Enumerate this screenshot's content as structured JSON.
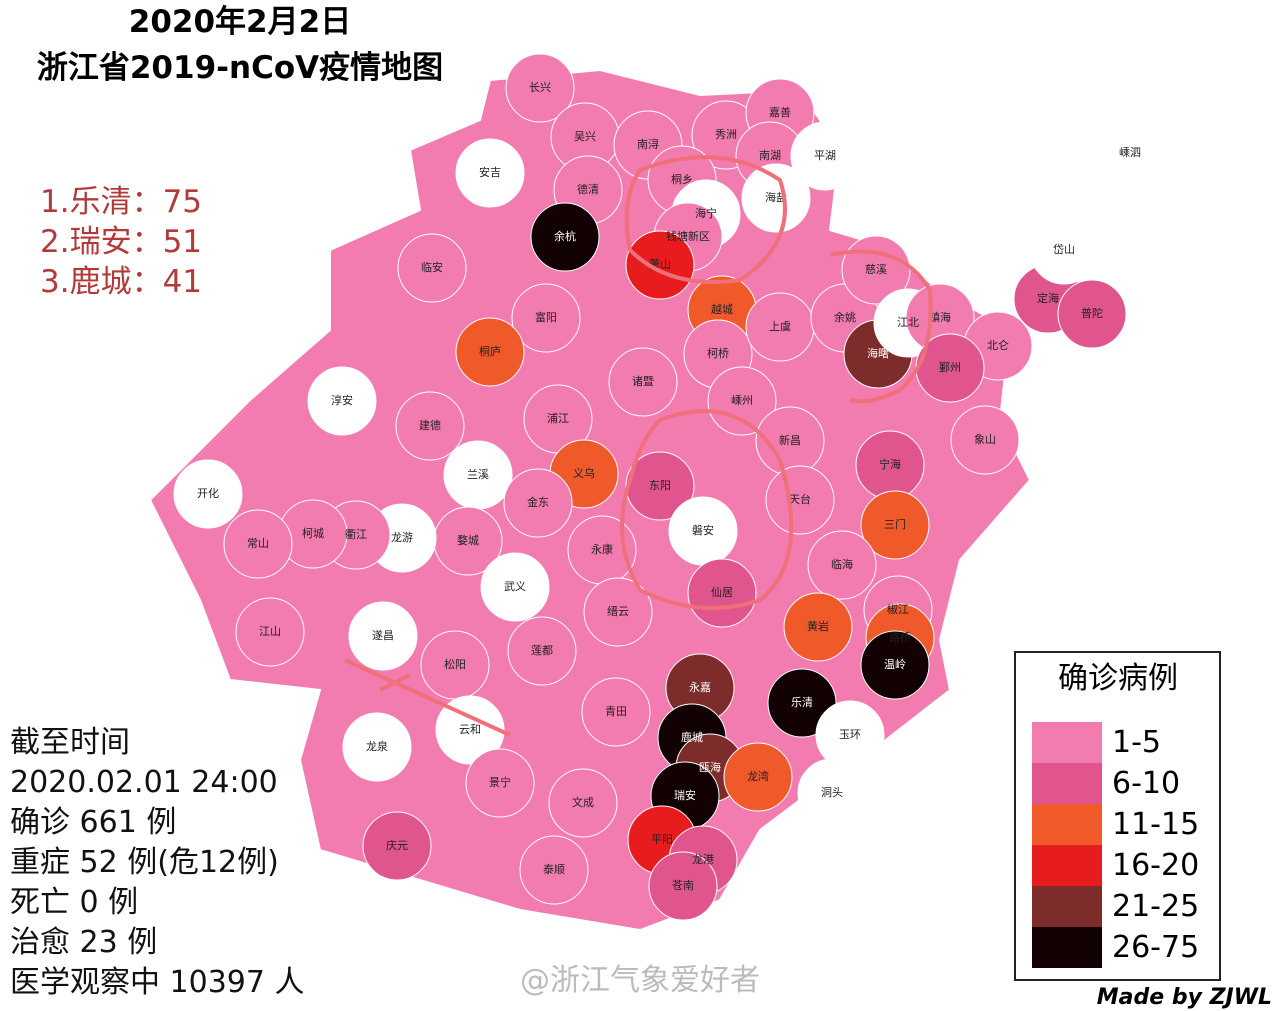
{
  "header": {
    "title_date": "2020年2月2日",
    "title_main": "浙江省2019-nCoV疫情地图"
  },
  "ranking": [
    "1.乐清：75",
    "2.瑞安：51",
    "3.鹿城：41"
  ],
  "stats": [
    "截至时间",
    "2020.02.01 24:00",
    "确诊 661 例",
    "重症 52 例(危12例)",
    "死亡 0 例",
    "治愈 23 例",
    "医学观察中 10397 人"
  ],
  "legend": {
    "title": "确诊病例",
    "items": [
      {
        "label": "1-5",
        "color": "#f27bb0"
      },
      {
        "label": "6-10",
        "color": "#e0558d"
      },
      {
        "label": "11-15",
        "color": "#f05a2a"
      },
      {
        "label": "16-20",
        "color": "#e81b1f"
      },
      {
        "label": "21-25",
        "color": "#7d2b2b"
      },
      {
        "label": "26-75",
        "color": "#120204"
      }
    ]
  },
  "regions": [
    {
      "name": "长兴",
      "color": "#f27bb0"
    },
    {
      "name": "吴兴",
      "color": "#f27bb0"
    },
    {
      "name": "南浔",
      "color": "#f27bb0"
    },
    {
      "name": "秀洲",
      "color": "#f27bb0"
    },
    {
      "name": "嘉善",
      "color": "#f27bb0"
    },
    {
      "name": "南湖",
      "color": "#f27bb0"
    },
    {
      "name": "平湖",
      "color": "#ffffff"
    },
    {
      "name": "安吉",
      "color": "#ffffff"
    },
    {
      "name": "德清",
      "color": "#f27bb0"
    },
    {
      "name": "桐乡",
      "color": "#f27bb0"
    },
    {
      "name": "海宁",
      "color": "#ffffff"
    },
    {
      "name": "海盐",
      "color": "#ffffff"
    },
    {
      "name": "余杭",
      "color": "#120204"
    },
    {
      "name": "钱塘新区",
      "color": "#f27bb0"
    },
    {
      "name": "萧山",
      "color": "#e81b1f"
    },
    {
      "name": "临安",
      "color": "#f27bb0"
    },
    {
      "name": "富阳",
      "color": "#f27bb0"
    },
    {
      "name": "桐庐",
      "color": "#f05a2a"
    },
    {
      "name": "淳安",
      "color": "#ffffff"
    },
    {
      "name": "建德",
      "color": "#f27bb0"
    },
    {
      "name": "浦江",
      "color": "#f27bb0"
    },
    {
      "name": "诸暨",
      "color": "#f27bb0"
    },
    {
      "name": "越城",
      "color": "#f05a2a"
    },
    {
      "name": "柯桥",
      "color": "#f27bb0"
    },
    {
      "name": "上虞",
      "color": "#f27bb0"
    },
    {
      "name": "余姚",
      "color": "#f27bb0"
    },
    {
      "name": "慈溪",
      "color": "#f27bb0"
    },
    {
      "name": "海曙",
      "color": "#7d2b2b"
    },
    {
      "name": "江北",
      "color": "#ffffff"
    },
    {
      "name": "镇海",
      "color": "#f27bb0"
    },
    {
      "name": "北仑",
      "color": "#f27bb0"
    },
    {
      "name": "鄞州",
      "color": "#e0558d"
    },
    {
      "name": "定海",
      "color": "#e0558d"
    },
    {
      "name": "普陀",
      "color": "#e0558d"
    },
    {
      "name": "岱山",
      "color": "#ffffff"
    },
    {
      "name": "嵊泗",
      "color": "#ffffff"
    },
    {
      "name": "嵊州",
      "color": "#f27bb0"
    },
    {
      "name": "新昌",
      "color": "#f27bb0"
    },
    {
      "name": "象山",
      "color": "#f27bb0"
    },
    {
      "name": "宁海",
      "color": "#e0558d"
    },
    {
      "name": "三门",
      "color": "#f05a2a"
    },
    {
      "name": "天台",
      "color": "#f27bb0"
    },
    {
      "name": "临海",
      "color": "#f27bb0"
    },
    {
      "name": "兰溪",
      "color": "#ffffff"
    },
    {
      "name": "义乌",
      "color": "#f05a2a"
    },
    {
      "name": "东阳",
      "color": "#e0558d"
    },
    {
      "name": "磐安",
      "color": "#ffffff"
    },
    {
      "name": "仙居",
      "color": "#e0558d"
    },
    {
      "name": "永康",
      "color": "#f27bb0"
    },
    {
      "name": "金东",
      "color": "#f27bb0"
    },
    {
      "name": "婺城",
      "color": "#f27bb0"
    },
    {
      "name": "龙游",
      "color": "#ffffff"
    },
    {
      "name": "衢江",
      "color": "#f27bb0"
    },
    {
      "name": "柯城",
      "color": "#f27bb0"
    },
    {
      "name": "常山",
      "color": "#f27bb0"
    },
    {
      "name": "开化",
      "color": "#ffffff"
    },
    {
      "name": "江山",
      "color": "#f27bb0"
    },
    {
      "name": "遂昌",
      "color": "#ffffff"
    },
    {
      "name": "武义",
      "color": "#ffffff"
    },
    {
      "name": "缙云",
      "color": "#f27bb0"
    },
    {
      "name": "松阳",
      "color": "#f27bb0"
    },
    {
      "name": "莲都",
      "color": "#f27bb0"
    },
    {
      "name": "龙泉",
      "color": "#ffffff"
    },
    {
      "name": "云和",
      "color": "#ffffff"
    },
    {
      "name": "青田",
      "color": "#f27bb0"
    },
    {
      "name": "永嘉",
      "color": "#7d2b2b"
    },
    {
      "name": "黄岩",
      "color": "#f05a2a"
    },
    {
      "name": "椒江",
      "color": "#f27bb0"
    },
    {
      "name": "路桥",
      "color": "#f05a2a"
    },
    {
      "name": "温岭",
      "color": "#120204"
    },
    {
      "name": "乐清",
      "color": "#120204"
    },
    {
      "name": "玉环",
      "color": "#ffffff"
    },
    {
      "name": "鹿城",
      "color": "#120204"
    },
    {
      "name": "瓯海",
      "color": "#7d2b2b"
    },
    {
      "name": "龙湾",
      "color": "#f05a2a"
    },
    {
      "name": "瑞安",
      "color": "#120204"
    },
    {
      "name": "洞头",
      "color": "#ffffff"
    },
    {
      "name": "景宁",
      "color": "#f27bb0"
    },
    {
      "name": "文成",
      "color": "#f27bb0"
    },
    {
      "name": "庆元",
      "color": "#e0558d"
    },
    {
      "name": "泰顺",
      "color": "#f27bb0"
    },
    {
      "name": "平阳",
      "color": "#e81b1f"
    },
    {
      "name": "龙港",
      "color": "#e0558d"
    },
    {
      "name": "苍南",
      "color": "#e0558d"
    }
  ],
  "footer": {
    "watermark": "@浙江气象爱好者",
    "credit": "Made by ZJWL"
  }
}
